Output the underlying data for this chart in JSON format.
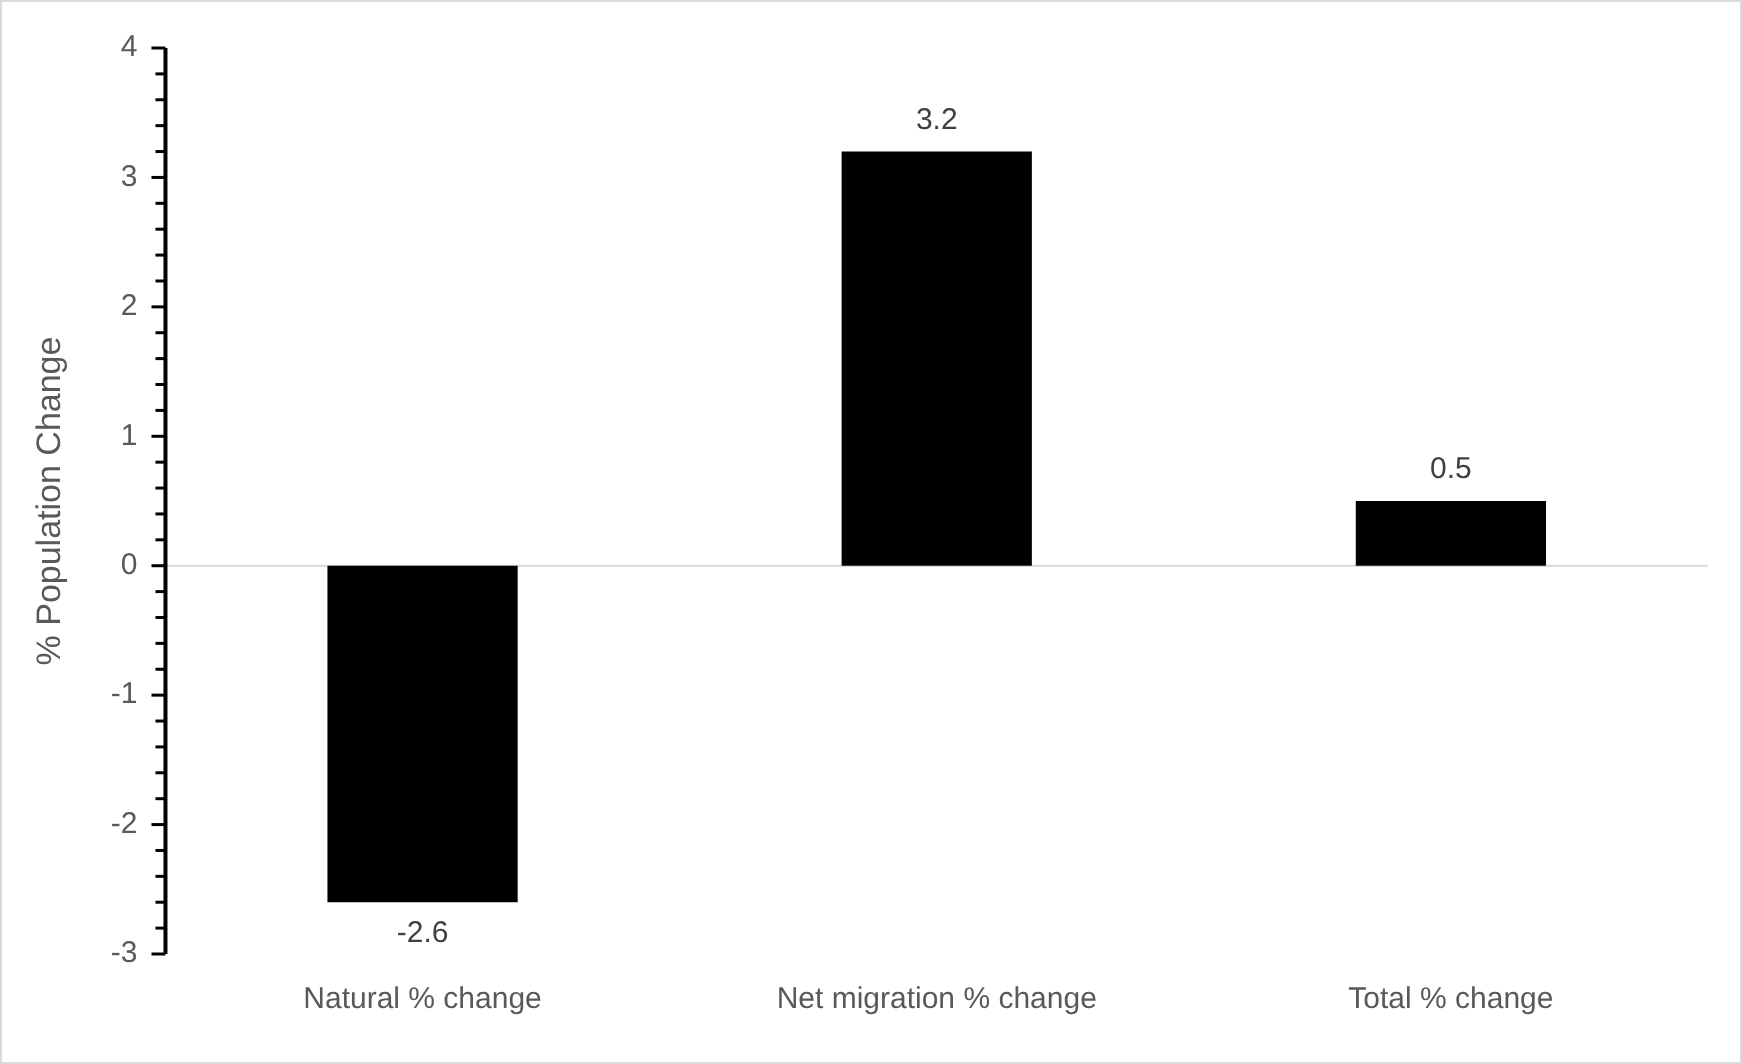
{
  "chart_data": {
    "type": "bar",
    "ylabel": "% Population Change",
    "categories": [
      "Natural % change",
      "Net migration % change",
      "Total % change"
    ],
    "values": [
      -2.6,
      3.2,
      0.5
    ],
    "color": "#000000",
    "ylim": [
      -3,
      4
    ],
    "yticks": [
      -3,
      {
        "value": -2.8,
        "label": null
      },
      {
        "value": -2.6,
        "label": null
      },
      {
        "value": -2.4,
        "label": null
      },
      {
        "value": -2.2,
        "label": null
      },
      -2,
      {
        "value": -1.8,
        "label": null
      },
      {
        "value": -1.6,
        "label": null
      },
      {
        "value": -1.4,
        "label": null
      },
      {
        "value": -1.2,
        "label": null
      },
      -1,
      {
        "value": -0.8,
        "label": null
      },
      {
        "value": -0.6,
        "label": null
      },
      {
        "value": -0.4,
        "label": null
      },
      {
        "value": -0.2,
        "label": null
      },
      0,
      {
        "value": 0.2,
        "label": null
      },
      {
        "value": 0.4,
        "label": null
      },
      {
        "value": 0.6,
        "label": null
      },
      {
        "value": 0.8,
        "label": null
      },
      1,
      {
        "value": 1.2,
        "label": null
      },
      {
        "value": 1.4,
        "label": null
      },
      {
        "value": 1.6,
        "label": null
      },
      {
        "value": 1.8,
        "label": null
      },
      2,
      {
        "value": 2.2,
        "label": null
      },
      {
        "value": 2.4,
        "label": null
      },
      {
        "value": 2.6,
        "label": null
      },
      {
        "value": 2.8,
        "label": null
      },
      3,
      {
        "value": 3.2,
        "label": null
      },
      {
        "value": 3.4,
        "label": null
      },
      {
        "value": 3.6,
        "label": null
      },
      {
        "value": 3.8,
        "label": null
      },
      4
    ],
    "ref_lines": [
      {
        "axis": "y",
        "value": 0,
        "color": "#d9d9d9"
      }
    ],
    "data_labels": true,
    "legend": false,
    "grid": false
  }
}
